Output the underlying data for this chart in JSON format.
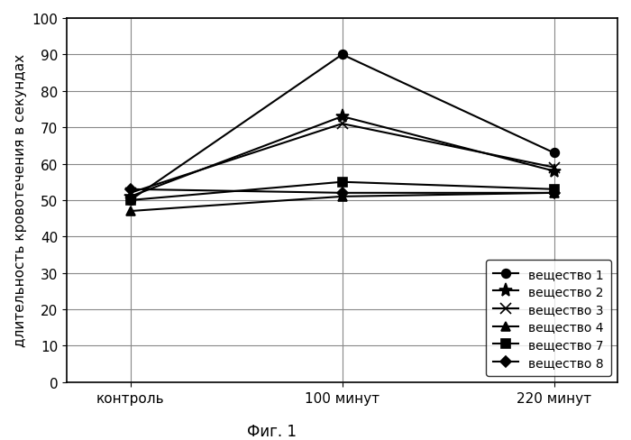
{
  "x_labels": [
    "контроль",
    "100 минут",
    "220 минут"
  ],
  "x_positions": [
    0,
    1,
    2
  ],
  "series": [
    {
      "label": "вещество 1",
      "values": [
        50,
        90,
        63
      ],
      "color": "#000000",
      "marker": "o",
      "markersize": 7,
      "linewidth": 1.5
    },
    {
      "label": "вещество 2",
      "values": [
        51,
        73,
        58
      ],
      "color": "#000000",
      "marker": "*",
      "markersize": 11,
      "linewidth": 1.5
    },
    {
      "label": "вещество 3",
      "values": [
        52,
        71,
        59
      ],
      "color": "#000000",
      "marker": "x",
      "markersize": 8,
      "linewidth": 1.5
    },
    {
      "label": "вещество 4",
      "values": [
        47,
        51,
        52
      ],
      "color": "#000000",
      "marker": "^",
      "markersize": 7,
      "linewidth": 1.5
    },
    {
      "label": "вещество 7",
      "values": [
        50,
        55,
        53
      ],
      "color": "#000000",
      "marker": "s",
      "markersize": 7,
      "linewidth": 1.5
    },
    {
      "label": "вещество 8",
      "values": [
        53,
        52,
        52
      ],
      "color": "#000000",
      "marker": "D",
      "markersize": 6,
      "linewidth": 1.5
    }
  ],
  "ylabel": "длительность кровотечения в секундах",
  "fig_label": "Фиг. 1",
  "ylim": [
    0,
    100
  ],
  "yticks": [
    0,
    10,
    20,
    30,
    40,
    50,
    60,
    70,
    80,
    90,
    100
  ],
  "background_color": "#ffffff",
  "grid_color": "#888888",
  "axis_fontsize": 11,
  "tick_fontsize": 11,
  "legend_fontsize": 10,
  "figlabel_fontsize": 12
}
